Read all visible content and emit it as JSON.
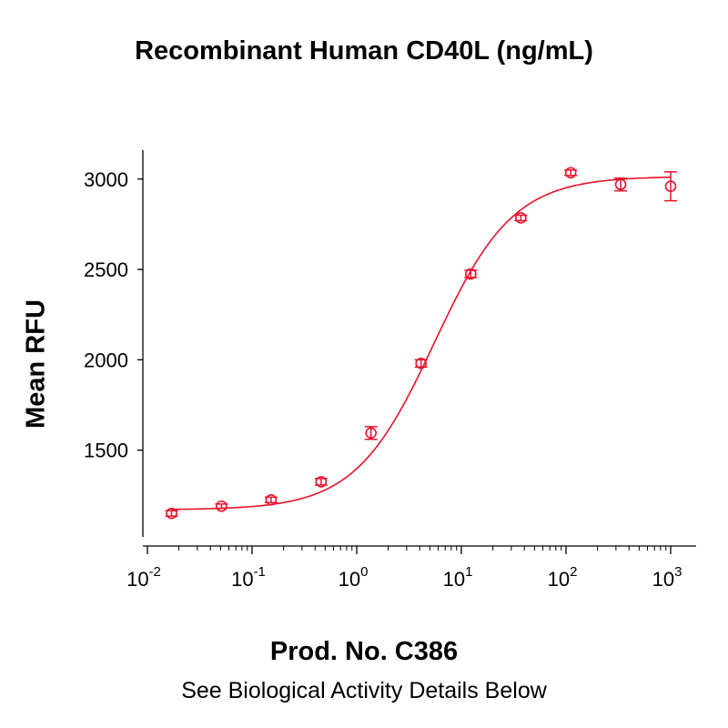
{
  "title": "Recombinant Human CD40L (ng/mL)",
  "footer": {
    "product": "Prod. No. C386",
    "note": "See Biological Activity Details Below"
  },
  "colors": {
    "series": "#e8122a",
    "axis": "#000000"
  },
  "chart_data": {
    "type": "scatter",
    "title": "Recombinant Human CD40L (ng/mL)",
    "xlabel": "",
    "ylabel": "Mean RFU",
    "xscale": "log",
    "xlim": [
      0.01,
      1000
    ],
    "ylim": [
      1020,
      3160
    ],
    "x_ticks": [
      {
        "value": 0.01,
        "base": "10",
        "exp": "-2"
      },
      {
        "value": 0.1,
        "base": "10",
        "exp": "-1"
      },
      {
        "value": 1,
        "base": "10",
        "exp": "0"
      },
      {
        "value": 10,
        "base": "10",
        "exp": "1"
      },
      {
        "value": 100,
        "base": "10",
        "exp": "2"
      },
      {
        "value": 1000,
        "base": "10",
        "exp": "3"
      }
    ],
    "y_ticks": [
      1500,
      2000,
      2500,
      3000
    ],
    "series": [
      {
        "x": [
          0.017,
          0.051,
          0.152,
          0.457,
          1.37,
          4.12,
          12.3,
          37.0,
          111,
          333,
          1000
        ],
        "y": [
          1150,
          1190,
          1225,
          1325,
          1595,
          1980,
          2475,
          2785,
          3035,
          2970,
          2960
        ],
        "err": [
          15,
          12,
          15,
          18,
          35,
          20,
          20,
          15,
          15,
          35,
          80
        ],
        "fit": {
          "model": "4PL",
          "bottom": 1170,
          "top": 3015,
          "ec50": 5.5,
          "hill": 1.15
        }
      }
    ],
    "grid": false,
    "legend": "none"
  }
}
